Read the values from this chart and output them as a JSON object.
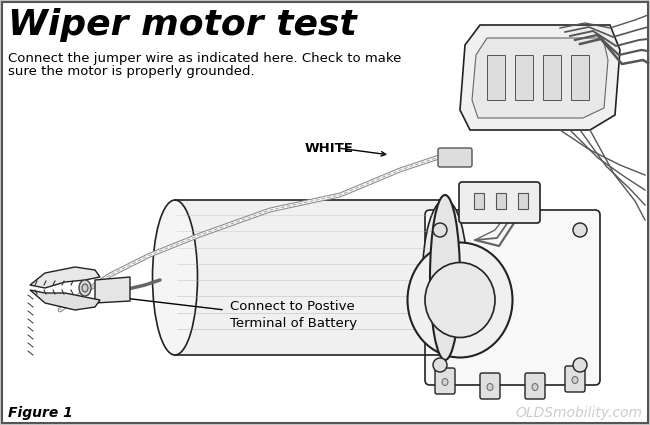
{
  "title": "Wiper motor test",
  "subtitle_line1": "Connect the jumper wire as indicated here. Check to make",
  "subtitle_line2": "sure the motor is properly grounded.",
  "label_white": "WHITE",
  "label_battery": "Connect to Postive\nTerminal of Battery",
  "figure_label": "Figure 1",
  "watermark": "OLDSmobility.com",
  "bg_color": "#c8c8c8",
  "inner_bg": "#ffffff",
  "border_color": "#000000",
  "text_color": "#000000",
  "title_fontsize": 26,
  "subtitle_fontsize": 9.5,
  "label_fontsize": 9.5,
  "figure_label_fontsize": 10,
  "watermark_fontsize": 10,
  "line_color": "#222222",
  "light_gray": "#cccccc",
  "mid_gray": "#999999",
  "dark_gray": "#444444"
}
